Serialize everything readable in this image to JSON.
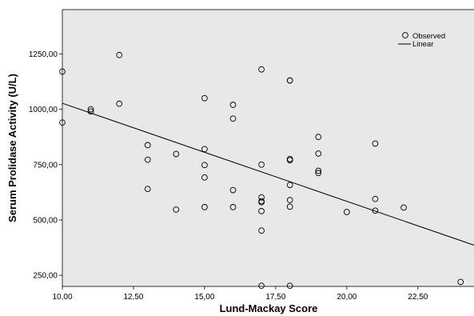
{
  "chart_data": {
    "type": "scatter",
    "title": "",
    "xlabel": "Lund-Mackay Score",
    "ylabel": "Serum Prolidase Activity (U/L)",
    "xlim": [
      10,
      24.5
    ],
    "ylim": [
      200,
      1450
    ],
    "x_ticks": [
      10,
      12.5,
      15,
      17.5,
      20,
      22.5
    ],
    "x_tick_labels": [
      "10,00",
      "12,50",
      "15,00",
      "17,50",
      "20,00",
      "22,50"
    ],
    "y_ticks": [
      250,
      500,
      750,
      1000,
      1250
    ],
    "y_tick_labels": [
      "250,00",
      "500,00",
      "750,00",
      "1000,00",
      "1250,00"
    ],
    "grid": false,
    "legend_position": "top-right",
    "series": [
      {
        "name": "Observed",
        "kind": "points",
        "x": [
          10,
          10,
          11,
          11,
          12,
          12,
          13,
          13,
          13,
          14,
          14,
          15,
          15,
          15,
          15,
          15,
          16,
          16,
          16,
          16,
          17,
          17,
          17,
          17,
          17,
          17,
          17,
          17,
          18,
          18,
          18,
          18,
          18,
          18,
          18,
          18,
          19,
          19,
          19,
          19,
          20,
          21,
          21,
          21,
          22,
          24
        ],
        "y": [
          1170,
          940,
          1000,
          990,
          1245,
          1025,
          838,
          772,
          640,
          798,
          547,
          1050,
          820,
          748,
          692,
          558,
          1020,
          958,
          635,
          558,
          1180,
          750,
          602,
          585,
          580,
          540,
          452,
          203,
          1130,
          775,
          770,
          658,
          590,
          560,
          203,
          1130,
          875,
          800,
          722,
          712,
          536,
          845,
          595,
          542,
          556,
          220
        ]
      },
      {
        "name": "Linear",
        "kind": "line",
        "x": [
          10,
          24.5
        ],
        "y": [
          1027,
          385
        ]
      }
    ]
  }
}
